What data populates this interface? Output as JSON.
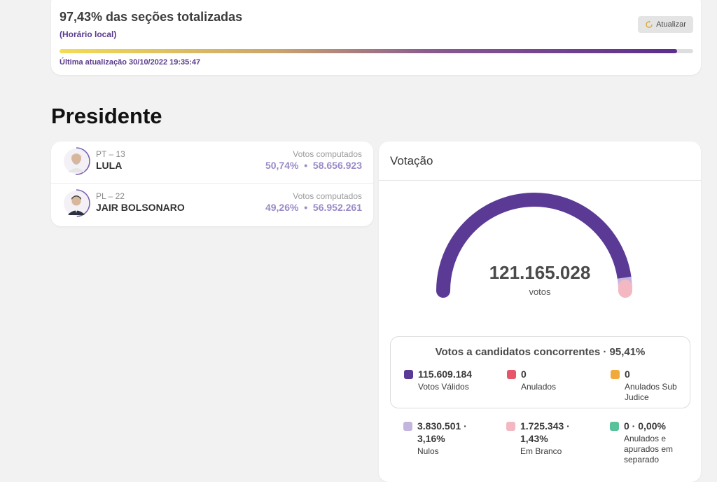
{
  "status": {
    "title": "97,43% das seções totalizadas",
    "subtitle": "(Horário local)",
    "refresh_label": "Atualizar",
    "progress_fraction": 0.9743,
    "last_update": "Última atualização 30/10/2022 19:35:47"
  },
  "section_title": "Presidente",
  "candidates": [
    {
      "party": "PT – 13",
      "name": "LULA",
      "votes_label": "Votos computados",
      "percent": "50,74%",
      "separator": "•",
      "votes": "58.656.923",
      "ring_fraction": 0.5074
    },
    {
      "party": "PL – 22",
      "name": "JAIR BOLSONARO",
      "votes_label": "Votos computados",
      "percent": "49,26%",
      "separator": "•",
      "votes": "56.952.261",
      "ring_fraction": 0.4926
    }
  ],
  "voting": {
    "title": "Votação",
    "total": "121.165.028",
    "total_unit": "votos",
    "gauge_shares": {
      "valid": 0.9541,
      "nulls": 0.0316,
      "blank": 0.0143
    },
    "valid_box_title": "Votos a candidatos concorrentes · 95,41%",
    "valid_items": [
      {
        "value": "115.609.184",
        "label": "Votos Válidos",
        "color": "#5b3a96"
      },
      {
        "value": "0",
        "label": "Anulados",
        "color": "#e8556a"
      },
      {
        "value": "0",
        "label": "Anulados Sub Judice",
        "color": "#f2a93b"
      }
    ],
    "other_items": [
      {
        "value": "3.830.501 · 3,16%",
        "label": "Nulos",
        "color": "#c3b6de"
      },
      {
        "value": "1.725.343 · 1,43%",
        "label": "Em Branco",
        "color": "#f4b8c2"
      },
      {
        "value": "0 · 0,00%",
        "label": "Anulados e apurados em separado",
        "color": "#58c29a"
      }
    ]
  },
  "colors": {
    "accent": "#5b2d8e",
    "gauge_valid": "#5b3a96",
    "gauge_nulls": "#c3b6de",
    "gauge_blank": "#f4b8c2"
  }
}
